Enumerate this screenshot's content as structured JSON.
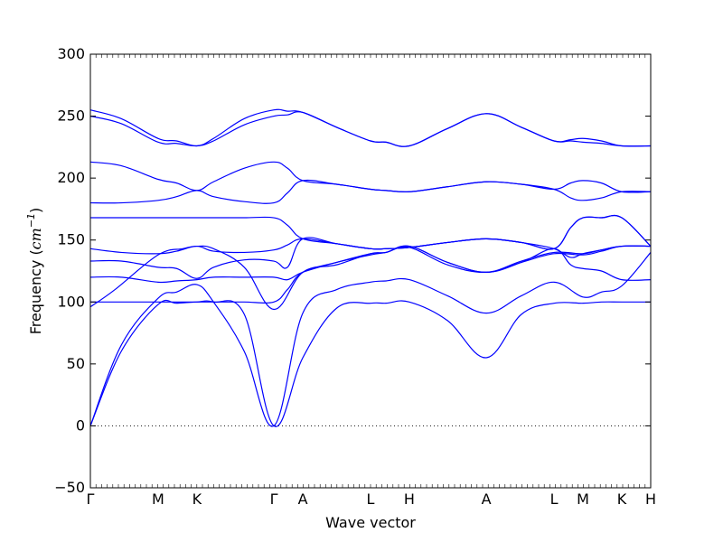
{
  "chart_data": {
    "type": "line",
    "xlabel": "Wave vector",
    "ylabel_prefix": "Frequency (",
    "ylabel_math": "cm",
    "ylabel_exp": "−1",
    "ylabel_suffix": ")",
    "ylim": [
      -50,
      300
    ],
    "yticks": [
      "−50",
      "0",
      "50",
      "100",
      "150",
      "200",
      "250",
      "300"
    ],
    "ytick_values": [
      -50,
      0,
      50,
      100,
      150,
      200,
      250,
      300
    ],
    "xlim": [
      0,
      9.1
    ],
    "qpoints": [
      {
        "label": "Γ",
        "x": 0
      },
      {
        "label": "M",
        "x": 1.1
      },
      {
        "label": "K",
        "x": 1.73
      },
      {
        "label": "Γ",
        "x": 2.98
      },
      {
        "label": "A",
        "x": 3.45
      },
      {
        "label": "L",
        "x": 4.55
      },
      {
        "label": "H",
        "x": 5.18
      },
      {
        "label": "A",
        "x": 6.43
      },
      {
        "label": "L",
        "x": 7.53
      },
      {
        "label": "M",
        "x": 8.0
      },
      {
        "label": "K",
        "x": 8.63
      },
      {
        "label": "H",
        "x": 9.1
      }
    ],
    "zero_line": true,
    "line_color": "#0000ff",
    "series": [
      {
        "x": [
          0,
          0.5,
          1.1,
          1.4,
          1.73,
          2.0,
          2.5,
          2.98,
          3.45,
          4.0,
          4.55,
          4.8,
          5.18,
          5.8,
          6.43,
          7.0,
          7.53,
          8.0,
          8.3,
          8.63,
          9.1
        ],
        "y": [
          0,
          60,
          98,
          99,
          100,
          100,
          90,
          0,
          55,
          95,
          99,
          99,
          100,
          85,
          55,
          90,
          99,
          99,
          100,
          100,
          100
        ]
      },
      {
        "x": [
          0,
          0.5,
          1.1,
          1.4,
          1.73,
          2.0,
          2.5,
          2.98,
          3.45,
          4.0,
          4.55,
          4.8,
          5.18,
          5.8,
          6.43,
          7.0,
          7.53,
          8.0,
          8.3,
          8.63,
          9.1
        ],
        "y": [
          0,
          65,
          103,
          108,
          114,
          100,
          60,
          0,
          91,
          110,
          116,
          117,
          118,
          105,
          91,
          105,
          116,
          104,
          108,
          113,
          140
        ]
      },
      {
        "x": [
          0,
          0.4,
          1.1,
          1.5,
          1.73,
          2.0,
          2.5,
          2.98,
          3.45,
          4.0,
          4.55,
          4.8,
          5.18,
          5.8,
          6.43,
          7.0,
          7.53,
          8.0,
          8.3,
          8.63,
          9.1
        ],
        "y": [
          96,
          110,
          138,
          143,
          145,
          143,
          128,
          94,
          124,
          130,
          139,
          140,
          145,
          132,
          124,
          132,
          139,
          138,
          141,
          145,
          145
        ]
      },
      {
        "x": [
          0,
          0.5,
          1.1,
          1.4,
          1.73,
          2.0,
          2.5,
          2.98,
          3.2,
          3.45,
          4.0,
          4.55,
          4.8,
          5.18,
          5.8,
          6.43,
          7.0,
          7.53,
          8.0,
          8.3,
          8.63,
          9.1
        ],
        "y": [
          100,
          100,
          100,
          100,
          100,
          100,
          100,
          100,
          110,
          124,
          132,
          138,
          140,
          144,
          130,
          124,
          133,
          140,
          139,
          142,
          145,
          145
        ]
      },
      {
        "x": [
          0,
          0.5,
          1.1,
          1.4,
          1.73,
          2.0,
          2.5,
          2.98,
          3.2,
          3.45,
          4.0,
          4.55,
          4.8,
          5.18,
          5.8,
          6.43,
          7.0,
          7.53,
          7.8,
          8.0,
          8.3,
          8.63,
          9.1
        ],
        "y": [
          120,
          120,
          116,
          117,
          118,
          120,
          120,
          120,
          118,
          124,
          132,
          139,
          140,
          145,
          132,
          124,
          132,
          143,
          130,
          127,
          125,
          118,
          118
        ]
      },
      {
        "x": [
          0,
          0.5,
          1.1,
          1.4,
          1.73,
          2.0,
          2.5,
          2.98,
          3.2,
          3.45,
          4.0,
          4.55,
          4.8,
          5.18,
          5.8,
          6.43,
          7.0,
          7.53,
          7.8,
          8.0,
          8.3,
          8.63,
          9.1
        ],
        "y": [
          133,
          133,
          128,
          127,
          119,
          128,
          134,
          133,
          128,
          151,
          147,
          143,
          143,
          144,
          148,
          151,
          148,
          143,
          136,
          139,
          142,
          145,
          145
        ]
      },
      {
        "x": [
          0,
          0.5,
          1.1,
          1.4,
          1.73,
          2.0,
          2.5,
          2.98,
          3.2,
          3.45,
          4.0,
          4.55,
          4.8,
          5.18,
          5.8,
          6.43,
          7.0,
          7.53,
          7.8,
          8.0,
          8.3,
          8.63,
          9.1
        ],
        "y": [
          143,
          140,
          139,
          141,
          145,
          141,
          140,
          142,
          146,
          151,
          147,
          143,
          143,
          144,
          148,
          151,
          148,
          143,
          160,
          168,
          168,
          168,
          145
        ]
      },
      {
        "x": [
          0,
          0.5,
          1.1,
          1.4,
          1.73,
          2.0,
          2.5,
          2.98,
          3.2,
          3.45,
          4.0,
          4.55,
          4.8,
          5.18,
          5.8,
          6.43,
          7.0,
          7.53,
          7.8,
          8.0,
          8.3,
          8.63,
          9.1
        ],
        "y": [
          168,
          168,
          168,
          168,
          168,
          168,
          168,
          168,
          162,
          151,
          147,
          143,
          143,
          144,
          148,
          151,
          148,
          143,
          160,
          168,
          168,
          168,
          145
        ]
      },
      {
        "x": [
          0,
          0.5,
          1.1,
          1.4,
          1.73,
          2.0,
          2.5,
          2.98,
          3.2,
          3.45,
          4.0,
          4.55,
          4.8,
          5.18,
          5.8,
          6.43,
          7.0,
          7.53,
          7.8,
          8.0,
          8.3,
          8.63,
          9.1
        ],
        "y": [
          180,
          180,
          182,
          185,
          190,
          185,
          181,
          180,
          188,
          198,
          195,
          191,
          190,
          189,
          193,
          197,
          195,
          191,
          184,
          182,
          184,
          189,
          189
        ]
      },
      {
        "x": [
          0,
          0.5,
          1.1,
          1.4,
          1.73,
          2.0,
          2.5,
          2.98,
          3.2,
          3.45,
          4.0,
          4.55,
          4.8,
          5.18,
          5.8,
          6.43,
          7.0,
          7.53,
          7.8,
          8.0,
          8.3,
          8.63,
          9.1
        ],
        "y": [
          213,
          210,
          199,
          196,
          190,
          197,
          208,
          213,
          208,
          198,
          195,
          191,
          190,
          189,
          193,
          197,
          195,
          191,
          196,
          198,
          196,
          189,
          189
        ]
      },
      {
        "x": [
          0,
          0.5,
          1.1,
          1.4,
          1.73,
          2.0,
          2.5,
          2.98,
          3.2,
          3.45,
          4.0,
          4.55,
          4.8,
          5.18,
          5.8,
          6.43,
          7.0,
          7.53,
          7.8,
          8.0,
          8.3,
          8.63,
          9.1
        ],
        "y": [
          250,
          244,
          229,
          228,
          226,
          230,
          243,
          250,
          251,
          253,
          241,
          230,
          229,
          226,
          240,
          252,
          241,
          230,
          230,
          229,
          228,
          226,
          226
        ]
      },
      {
        "x": [
          0,
          0.5,
          1.1,
          1.4,
          1.73,
          2.0,
          2.5,
          2.98,
          3.2,
          3.45,
          4.0,
          4.55,
          4.8,
          5.18,
          5.8,
          6.43,
          7.0,
          7.53,
          7.8,
          8.0,
          8.3,
          8.63,
          9.1
        ],
        "y": [
          255,
          248,
          232,
          230,
          226,
          232,
          248,
          255,
          254,
          253,
          241,
          230,
          229,
          226,
          240,
          252,
          241,
          230,
          231,
          232,
          230,
          226,
          226
        ]
      }
    ]
  }
}
